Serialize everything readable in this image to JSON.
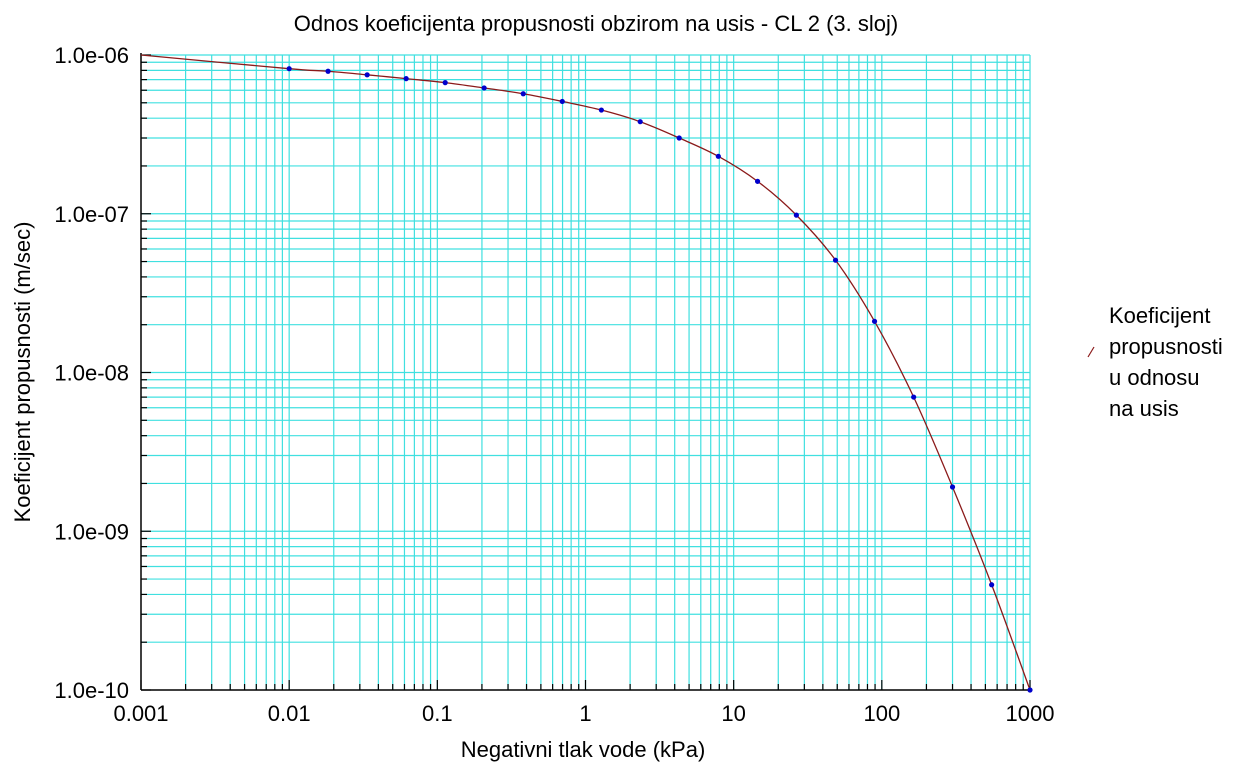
{
  "chart_data": {
    "type": "line",
    "title": "Odnos koeficijenta propusnosti obzirom na usis - CL 2 (3. sloj)",
    "xlabel": "Negativni tlak vode (kPa)",
    "ylabel": "Koeficijent propusnosti (m/sec)",
    "x_scale": "log",
    "y_scale": "log",
    "xlim": [
      0.001,
      1000
    ],
    "ylim": [
      1e-10,
      1e-06
    ],
    "x_ticks": [
      0.001,
      0.01,
      0.1,
      1,
      10,
      100,
      1000
    ],
    "x_tick_labels": [
      "0.001",
      "0.01",
      "0.1",
      "1",
      "10",
      "100",
      "1000"
    ],
    "y_ticks": [
      1e-10,
      1e-09,
      1e-08,
      1e-07,
      1e-06
    ],
    "y_tick_labels": [
      "1.0e-10",
      "1.0e-09",
      "1.0e-08",
      "1.0e-07",
      "1.0e-06"
    ],
    "grid": true,
    "grid_color": "#40e0e0",
    "line_color": "#8b1a1a",
    "point_color": "#0000cc",
    "legend_position": "right",
    "series": [
      {
        "name": "Koeficijent propusnosti u odnosu na usis",
        "legend_lines": [
          "Koeficijent",
          "propusnosti",
          "u odnosu",
          "na usis"
        ],
        "x": [
          0.001,
          0.01,
          0.0183,
          0.0336,
          0.0616,
          0.113,
          0.207,
          0.38,
          0.697,
          1.28,
          2.34,
          4.29,
          7.88,
          14.5,
          26.5,
          48.7,
          89.3,
          164,
          300,
          551,
          1000
        ],
        "y": [
          1e-06,
          8.2e-07,
          7.9e-07,
          7.5e-07,
          7.1e-07,
          6.7e-07,
          6.2e-07,
          5.7e-07,
          5.1e-07,
          4.5e-07,
          3.8e-07,
          3e-07,
          2.3e-07,
          1.6e-07,
          9.8e-08,
          5.1e-08,
          2.1e-08,
          7e-09,
          1.9e-09,
          4.6e-10,
          1e-10
        ],
        "markers": [
          false,
          true,
          true,
          true,
          true,
          true,
          true,
          true,
          true,
          true,
          true,
          true,
          true,
          true,
          true,
          true,
          true,
          true,
          true,
          true,
          true
        ]
      }
    ]
  }
}
